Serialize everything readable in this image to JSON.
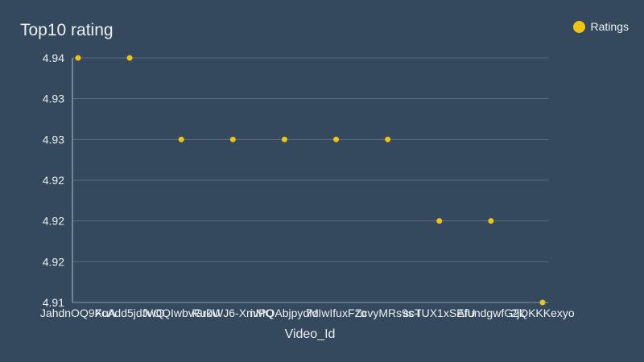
{
  "chart_data": {
    "type": "scatter",
    "title": "Top10 rating",
    "xlabel": "Video_Id",
    "ylabel": "",
    "categories": [
      "JahdnOQ9XuA",
      "FcAdd5jdJwQ",
      "fVOQIwbvGrkU",
      "Ru0WJ6-XmMQ",
      "ivPQAbjpydM",
      "7oIwIfuxFzo",
      "ZcvyMRs9s-I",
      "scTUX1xSEfU",
      "AfundgwfG2k",
      "2jQKKKexyo"
    ],
    "series": [
      {
        "name": "Ratings",
        "color": "#f1c40f",
        "values": [
          4.94,
          4.94,
          4.93,
          4.93,
          4.93,
          4.93,
          4.93,
          4.92,
          4.92,
          4.91
        ]
      }
    ],
    "y_ticks": [
      "4.94",
      "4.93",
      "4.93",
      "4.92",
      "4.92",
      "4.92",
      "4.91"
    ],
    "grid": true,
    "legend_position": "top-right",
    "colors": {
      "background": "#34495e",
      "text": "#ecf0f1",
      "grid": "#5d6d7e",
      "marker": "#f1c40f"
    }
  }
}
